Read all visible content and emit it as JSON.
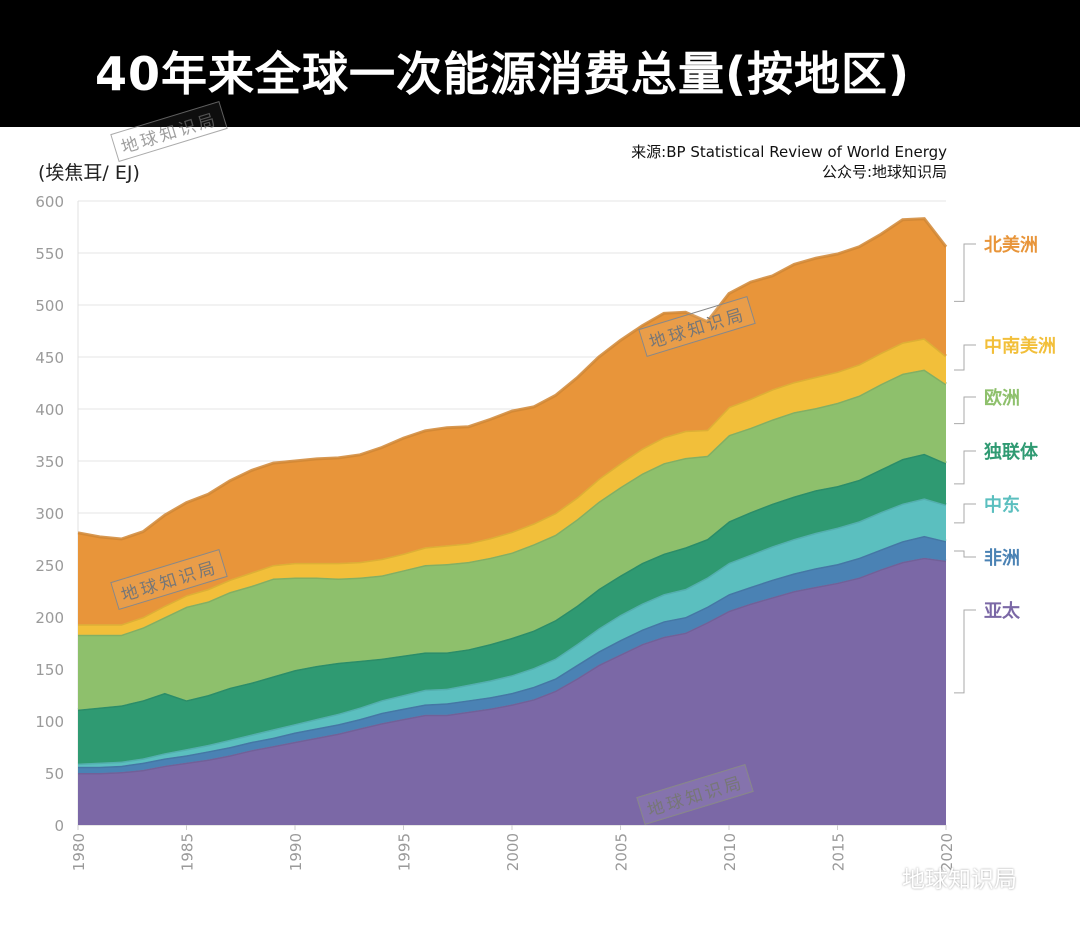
{
  "header": {
    "title": "40年来全球一次能源消费总量(按地区)"
  },
  "source": {
    "line1": "来源:BP Statistical Review of World Energy",
    "line2": "公众号:地球知识局"
  },
  "watermark": {
    "text": "地球知识局"
  },
  "brand": {
    "text": "地球知识局"
  },
  "colors": {
    "亚太": "#7b68a6",
    "非洲": "#4a82b4",
    "中东": "#5bbfbf",
    "独联体": "#2f9a72",
    "欧洲": "#8ec06c",
    "中南美洲": "#f2bf3a",
    "北美洲": "#e8953a"
  },
  "chart_data": {
    "type": "area",
    "stacked": true,
    "title": "40年来全球一次能源消费总量(按地区)",
    "ylabel": "(埃焦耳/ EJ)",
    "xlabel": "",
    "ylim": [
      0,
      600
    ],
    "yticks": [
      0,
      50,
      100,
      150,
      200,
      250,
      300,
      350,
      400,
      450,
      500,
      550,
      600
    ],
    "xlim": [
      1980,
      2020
    ],
    "xticks": [
      1980,
      1985,
      1990,
      1995,
      2000,
      2005,
      2010,
      2015,
      2020
    ],
    "xtick_labels": [
      "1980",
      "1985",
      "1990",
      "1995",
      "2000",
      "2005",
      "2010",
      "2015",
      "2020"
    ],
    "legend_placement": "right",
    "x": [
      1980,
      1981,
      1982,
      1983,
      1984,
      1985,
      1986,
      1987,
      1988,
      1989,
      1990,
      1991,
      1992,
      1993,
      1994,
      1995,
      1996,
      1997,
      1998,
      1999,
      2000,
      2001,
      2002,
      2003,
      2004,
      2005,
      2006,
      2007,
      2008,
      2009,
      2010,
      2011,
      2012,
      2013,
      2014,
      2015,
      2016,
      2017,
      2018,
      2019,
      2020
    ],
    "series": [
      {
        "name": "亚太",
        "values": [
          50,
          50,
          51,
          53,
          57,
          60,
          63,
          67,
          72,
          76,
          80,
          84,
          88,
          93,
          98,
          102,
          106,
          106,
          109,
          112,
          116,
          121,
          129,
          141,
          154,
          164,
          174,
          181,
          185,
          195,
          206,
          213,
          219,
          225,
          229,
          233,
          238,
          246,
          253,
          257,
          254
        ]
      },
      {
        "name": "非洲",
        "values": [
          6,
          6,
          6,
          7,
          7,
          7,
          8,
          8,
          8,
          8,
          9,
          9,
          9,
          9,
          10,
          10,
          10,
          11,
          11,
          11,
          11,
          12,
          12,
          13,
          13,
          14,
          14,
          15,
          15,
          15,
          16,
          16,
          17,
          17,
          18,
          18,
          19,
          19,
          20,
          21,
          19
        ]
      },
      {
        "name": "中东",
        "values": [
          3,
          4,
          4,
          4,
          5,
          6,
          6,
          7,
          7,
          8,
          8,
          9,
          10,
          11,
          12,
          13,
          14,
          14,
          15,
          16,
          17,
          18,
          19,
          20,
          22,
          24,
          25,
          26,
          27,
          28,
          30,
          31,
          32,
          33,
          34,
          35,
          35,
          36,
          36,
          36,
          35
        ]
      },
      {
        "name": "独联体",
        "values": [
          52,
          53,
          54,
          56,
          58,
          47,
          48,
          50,
          50,
          51,
          52,
          51,
          49,
          45,
          40,
          38,
          36,
          35,
          34,
          35,
          36,
          36,
          37,
          37,
          38,
          38,
          39,
          39,
          40,
          37,
          40,
          41,
          41,
          41,
          41,
          40,
          40,
          41,
          43,
          43,
          40
        ]
      },
      {
        "name": "欧洲",
        "values": [
          72,
          70,
          68,
          70,
          73,
          90,
          90,
          92,
          93,
          94,
          89,
          85,
          81,
          80,
          80,
          82,
          84,
          85,
          84,
          83,
          82,
          83,
          82,
          83,
          84,
          85,
          86,
          87,
          86,
          80,
          83,
          81,
          81,
          81,
          79,
          80,
          81,
          82,
          82,
          81,
          76
        ]
      },
      {
        "name": "中南美洲",
        "values": [
          10,
          10,
          10,
          10,
          11,
          11,
          12,
          12,
          13,
          13,
          14,
          14,
          15,
          15,
          16,
          16,
          17,
          18,
          18,
          19,
          20,
          20,
          21,
          21,
          22,
          23,
          24,
          25,
          26,
          25,
          27,
          28,
          29,
          29,
          30,
          30,
          30,
          30,
          30,
          30,
          27
        ]
      },
      {
        "name": "北美洲",
        "values": [
          88,
          84,
          82,
          82,
          87,
          89,
          91,
          95,
          98,
          98,
          98,
          100,
          101,
          103,
          107,
          111,
          112,
          113,
          112,
          114,
          116,
          112,
          113,
          115,
          117,
          118,
          118,
          119,
          114,
          104,
          109,
          112,
          109,
          113,
          114,
          113,
          113,
          114,
          118,
          115,
          105
        ]
      }
    ]
  }
}
